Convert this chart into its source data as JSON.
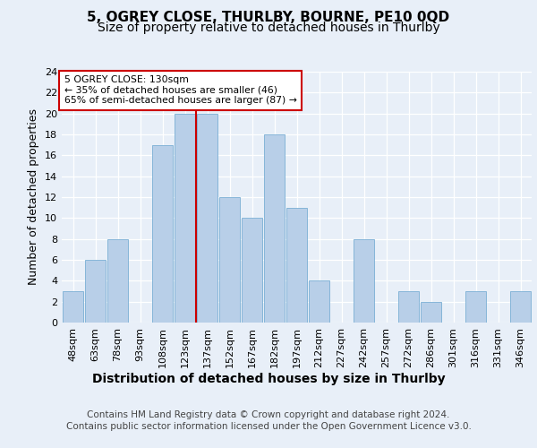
{
  "title": "5, OGREY CLOSE, THURLBY, BOURNE, PE10 0QD",
  "subtitle": "Size of property relative to detached houses in Thurlby",
  "xlabel": "Distribution of detached houses by size in Thurlby",
  "ylabel": "Number of detached properties",
  "categories": [
    "48sqm",
    "63sqm",
    "78sqm",
    "93sqm",
    "108sqm",
    "123sqm",
    "137sqm",
    "152sqm",
    "167sqm",
    "182sqm",
    "197sqm",
    "212sqm",
    "227sqm",
    "242sqm",
    "257sqm",
    "272sqm",
    "286sqm",
    "301sqm",
    "316sqm",
    "331sqm",
    "346sqm"
  ],
  "values": [
    3,
    6,
    8,
    0,
    17,
    20,
    20,
    12,
    10,
    18,
    11,
    4,
    0,
    8,
    0,
    3,
    2,
    0,
    3,
    0,
    3
  ],
  "bar_color": "#b8cfe8",
  "bar_edge_color": "#7aafd4",
  "vline_x_index": 5.5,
  "vline_color": "#cc0000",
  "annotation_title": "5 OGREY CLOSE: 130sqm",
  "annotation_line1": "← 35% of detached houses are smaller (46)",
  "annotation_line2": "65% of semi-detached houses are larger (87) →",
  "annotation_box_color": "#ffffff",
  "annotation_box_edge": "#cc0000",
  "ylim": [
    0,
    24
  ],
  "yticks": [
    0,
    2,
    4,
    6,
    8,
    10,
    12,
    14,
    16,
    18,
    20,
    22,
    24
  ],
  "footer1": "Contains HM Land Registry data © Crown copyright and database right 2024.",
  "footer2": "Contains public sector information licensed under the Open Government Licence v3.0.",
  "bg_color": "#e8eff8",
  "plot_bg_color": "#e8eff8",
  "grid_color": "#ffffff",
  "title_fontsize": 11,
  "subtitle_fontsize": 10,
  "xlabel_fontsize": 10,
  "ylabel_fontsize": 9,
  "tick_fontsize": 8,
  "footer_fontsize": 7.5
}
